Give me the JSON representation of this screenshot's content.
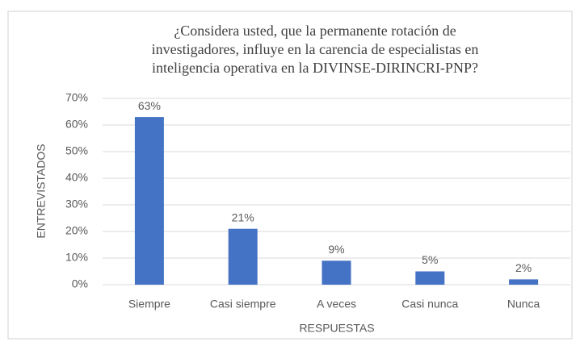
{
  "chart_data": {
    "type": "bar",
    "title_lines": [
      "¿Considera usted, que la permanente rotación de",
      "investigadores, influye en la carencia de especialistas en",
      "inteligencia operativa en la DIVINSE-DIRINCRI-PNP?"
    ],
    "x_label": "RESPUESTAS",
    "y_label": "ENTREVISTADOS",
    "categories": [
      "Siempre",
      "Casi siempre",
      "A veces",
      "Casi nunca",
      "Nunca"
    ],
    "values": [
      63,
      21,
      9,
      5,
      2
    ],
    "value_labels": [
      "63%",
      "21%",
      "9%",
      "5%",
      "2%"
    ],
    "color": "#4472c4",
    "ylim": [
      0,
      70
    ],
    "yticks": [
      {
        "value": 0,
        "label": "0%"
      },
      {
        "value": 10,
        "label": "10%"
      },
      {
        "value": 20,
        "label": "20%"
      },
      {
        "value": 30,
        "label": "30%"
      },
      {
        "value": 40,
        "label": "40%"
      },
      {
        "value": 50,
        "label": "50%"
      },
      {
        "value": 60,
        "label": "60%"
      },
      {
        "value": 70,
        "label": "70%"
      }
    ],
    "grid": true
  }
}
